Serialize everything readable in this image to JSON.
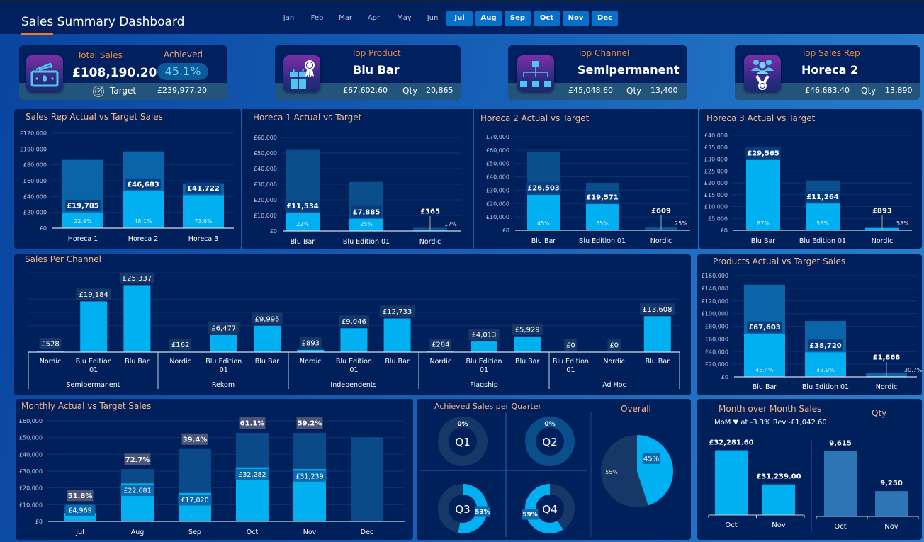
{
  "header": {
    "title": "Sales Summary Dashboard",
    "months": [
      {
        "label": "Jan",
        "active": false
      },
      {
        "label": "Feb",
        "active": false
      },
      {
        "label": "Mar",
        "active": false
      },
      {
        "label": "Apr",
        "active": false
      },
      {
        "label": "May",
        "active": false
      },
      {
        "label": "Jun",
        "active": false
      },
      {
        "label": "Jul",
        "active": true
      },
      {
        "label": "Aug",
        "active": true
      },
      {
        "label": "Sep",
        "active": true
      },
      {
        "label": "Oct",
        "active": true
      },
      {
        "label": "Nov",
        "active": true
      },
      {
        "label": "Dec",
        "active": true
      }
    ]
  },
  "colors": {
    "actual": "#00b0f0",
    "target": "#0a5a9c",
    "panel": "#00205c",
    "title": "#f4b890",
    "kpi_label": "#f08a3a",
    "qty_bar": "#2e75b6"
  },
  "kpis": {
    "total_sales": {
      "label": "Total Sales",
      "value": "£108,190.20",
      "achieved_label": "Achieved",
      "achieved": "45.1%",
      "target_label": "Target",
      "target": "£239,977.20",
      "icon": "cash-icon"
    },
    "top_product": {
      "label": "Top Product",
      "name": "Blu Bar",
      "value": "£67,602.60",
      "qty_label": "Qty",
      "qty": "20,865",
      "icon": "gift-award-icon"
    },
    "top_channel": {
      "label": "Top Channel",
      "name": "Semipermanent",
      "value": "£45,048.60",
      "qty_label": "Qty",
      "qty": "13,400",
      "icon": "org-chart-icon"
    },
    "top_rep": {
      "label": "Top Sales Rep",
      "name": "Horeca 2",
      "value": "£46,683.40",
      "qty_label": "Qty",
      "qty": "13,890",
      "icon": "team-medal-icon"
    }
  },
  "chart_data": [
    {
      "id": "rep",
      "type": "bar",
      "title": "Sales Rep Actual vs Target Sales",
      "categories": [
        "Horeca 1",
        "Horeca 2",
        "Horeca 3"
      ],
      "series": [
        {
          "name": "Target",
          "values": [
            86300,
            97000,
            56700
          ]
        },
        {
          "name": "Actual",
          "values": [
            19785,
            46683,
            41722
          ]
        }
      ],
      "value_labels": [
        "£19,785",
        "£46,683",
        "£41,722"
      ],
      "pct_labels": [
        "22.9%",
        "48.1%",
        "73.6%"
      ],
      "ylim": [
        0,
        120000
      ],
      "yticks": [
        "£0",
        "£20,000",
        "£40,000",
        "£60,000",
        "£80,000",
        "£100,000",
        "£120,000"
      ],
      "grid": true
    },
    {
      "id": "h1",
      "type": "bar",
      "title": "Horeca 1 Actual vs Target",
      "categories": [
        "Blu Bar",
        "Blu Edition  01",
        "Nordic"
      ],
      "series": [
        {
          "name": "Target",
          "values": [
            52000,
            31500,
            2100
          ]
        },
        {
          "name": "Actual",
          "values": [
            11534,
            7885,
            365
          ]
        }
      ],
      "value_labels": [
        "£11,534",
        "£7,885",
        "£365"
      ],
      "pct_labels": [
        "22%",
        "25%",
        "17%"
      ],
      "ylim": [
        0,
        60000
      ],
      "yticks": [
        "£0",
        "£10,000",
        "£20,000",
        "£30,000",
        "£40,000",
        "£50,000",
        "£60,000"
      ],
      "grid": true
    },
    {
      "id": "h2",
      "type": "bar",
      "title": "Horeca 2 Actual vs Target",
      "categories": [
        "Blu Bar",
        "Blu Edition  01",
        "Nordic"
      ],
      "series": [
        {
          "name": "Target",
          "values": [
            59000,
            35500,
            2400
          ]
        },
        {
          "name": "Actual",
          "values": [
            26503,
            19571,
            609
          ]
        }
      ],
      "value_labels": [
        "£26,503",
        "£19,571",
        "£609"
      ],
      "pct_labels": [
        "45%",
        "55%",
        "25%"
      ],
      "ylim": [
        0,
        70000
      ],
      "yticks": [
        "£0",
        "£10,000",
        "£20,000",
        "£30,000",
        "£40,000",
        "£50,000",
        "£60,000",
        "£70,000"
      ],
      "grid": true
    },
    {
      "id": "h3",
      "type": "bar",
      "title": "Horeca 3 Actual vs Target",
      "categories": [
        "Blu Bar",
        "Blu Edition  01",
        "Nordic"
      ],
      "series": [
        {
          "name": "Target",
          "values": [
            34000,
            21000,
            1500
          ]
        },
        {
          "name": "Actual",
          "values": [
            29565,
            11264,
            893
          ]
        }
      ],
      "value_labels": [
        "£29,565",
        "£11,264",
        "£893"
      ],
      "pct_labels": [
        "87%",
        "53%",
        "58%"
      ],
      "ylim": [
        0,
        40000
      ],
      "yticks": [
        "£0",
        "£5,000",
        "£10,000",
        "£15,000",
        "£20,000",
        "£25,000",
        "£30,000",
        "£35,000",
        "£40,000"
      ],
      "grid": true
    },
    {
      "id": "channel",
      "type": "bar",
      "title": "Sales Per Channel",
      "groups": [
        {
          "name": "Semipermanent",
          "categories": [
            "Nordic",
            "Blu Edition 01",
            "Blu Bar"
          ],
          "values": [
            528,
            19184,
            25337
          ],
          "labels": [
            "£528",
            "£19,184",
            "£25,337"
          ]
        },
        {
          "name": "Rekom",
          "categories": [
            "Nordic",
            "Blu Edition 01",
            "Blu Bar"
          ],
          "values": [
            162,
            6477,
            9995
          ],
          "labels": [
            "£162",
            "£6,477",
            "£9,995"
          ]
        },
        {
          "name": "Independents",
          "categories": [
            "Nordic",
            "Blu Edition 01",
            "Blu Bar"
          ],
          "values": [
            893,
            9046,
            12733
          ],
          "labels": [
            "£893",
            "£9,046",
            "£12,733"
          ]
        },
        {
          "name": "Flagship",
          "categories": [
            "Nordic",
            "Blu Edition 01",
            "Blu Bar"
          ],
          "values": [
            284,
            4013,
            5929
          ],
          "labels": [
            "£284",
            "£4,013",
            "£5,929"
          ]
        },
        {
          "name": "Ad Hoc",
          "categories": [
            "Blu Edition 01",
            "Nordic",
            "Blu Bar"
          ],
          "values": [
            0,
            0,
            13608
          ],
          "labels": [
            "£0",
            "£0",
            "£13,608"
          ]
        }
      ],
      "ylim": [
        0,
        30000
      ],
      "grid": true
    },
    {
      "id": "products",
      "type": "bar",
      "title": "Products Actual vs Target Sales",
      "categories": [
        "Blu Bar",
        "Blu Edition  01",
        "Nordic"
      ],
      "series": [
        {
          "name": "Target",
          "values": [
            145700,
            88300,
            6100
          ]
        },
        {
          "name": "Actual",
          "values": [
            67603,
            38720,
            1868
          ]
        }
      ],
      "value_labels": [
        "£67,603",
        "£38,720",
        "£1,868"
      ],
      "pct_labels": [
        "46.4%",
        "43.9%",
        "30.7%"
      ],
      "ylim": [
        0,
        160000
      ],
      "yticks": [
        "£0",
        "£20,000",
        "£40,000",
        "£60,000",
        "£80,000",
        "£100,000",
        "£120,000",
        "£140,000",
        "£160,000"
      ],
      "grid": true
    },
    {
      "id": "monthly",
      "type": "bar",
      "title": "Monthly Actual vs Target Sales",
      "categories": [
        "Jul",
        "Aug",
        "Sep",
        "Oct",
        "Nov",
        "Dec"
      ],
      "series": [
        {
          "name": "Target",
          "values": [
            9600,
            31200,
            43200,
            52800,
            52800,
            50200
          ]
        },
        {
          "name": "Actual",
          "values": [
            4969,
            22681,
            17020,
            32282,
            31239,
            0
          ]
        }
      ],
      "value_labels": [
        "£4,969",
        "£22,681",
        "£17,020",
        "£32,282",
        "£31,239",
        ""
      ],
      "pct_labels": [
        "51.8%",
        "72.7%",
        "39.4%",
        "61.1%",
        "59.2%",
        ""
      ],
      "ylim": [
        0,
        60000
      ],
      "yticks": [
        "£0",
        "£10,000",
        "£20,000",
        "£30,000",
        "£40,000",
        "£50,000",
        "£60,000"
      ],
      "grid": true
    },
    {
      "id": "quarters",
      "type": "pie",
      "title": "Achieved Sales per Quarter",
      "donuts": [
        {
          "label": "Q1",
          "value": 0,
          "text": "0%"
        },
        {
          "label": "Q2",
          "value": 0,
          "text": "0%"
        },
        {
          "label": "Q3",
          "value": 53,
          "text": "53%"
        },
        {
          "label": "Q4",
          "value": 59,
          "text": "59%"
        }
      ],
      "overall": {
        "title": "Overall",
        "values": [
          45,
          55
        ],
        "labels": [
          "45%",
          "55%"
        ]
      }
    },
    {
      "id": "mom",
      "type": "bar",
      "title": "Month over Month Sales",
      "subtitle": "MoM ▼ at -3.3% Rev:-£1,042.60",
      "categories": [
        "Oct",
        "Nov"
      ],
      "revenue": {
        "values": [
          32281.6,
          31239.0
        ],
        "labels": [
          "£32,281.60",
          "£31,239.00"
        ],
        "ylim": [
          30300,
          32900
        ]
      },
      "qty": {
        "title": "Qty",
        "values": [
          9615,
          9250
        ],
        "labels": [
          "9,615",
          "9,250"
        ],
        "ylim": [
          9020,
          9790
        ]
      }
    }
  ]
}
